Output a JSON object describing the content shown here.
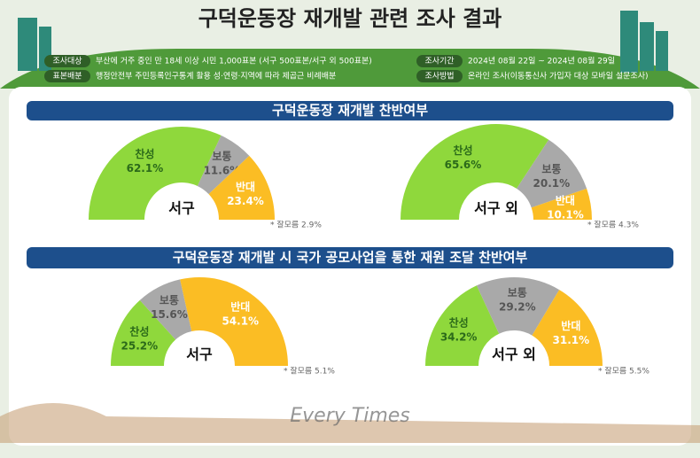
{
  "header": {
    "title": "구덕운동장 재개발 관련 조사 결과",
    "info": [
      {
        "label": "조사대상",
        "text": "부산에 거주 중인 만 18세 이상 시민 1,000표본 (서구 500표본/서구 외 500표본)"
      },
      {
        "label": "조사기간",
        "text": "2024년 08월 22일 ~ 2024년 08월 29일"
      },
      {
        "label": "표본배분",
        "text": "행정안전부 주민등록인구통계 활용 성·연령·지역에 따라 제곱근 비례배분"
      },
      {
        "label": "조사방법",
        "text": "온라인 조사(이동통신사 가입자 대상 모바일 설문조사)"
      }
    ]
  },
  "sections": [
    {
      "title": "구덕운동장 재개발 찬반여부"
    },
    {
      "title": "구덕운동장 재개발 시 국가 공모사업을 통한 재원 조달 찬반여부"
    }
  ],
  "watermark": "Every Times",
  "chart_data": [
    {
      "type": "pie",
      "title": "서구",
      "note": "* 잘모름 2.9%",
      "categories": [
        "찬성",
        "보통",
        "반대"
      ],
      "values": [
        62.1,
        11.6,
        23.4
      ],
      "value_labels": [
        "62.1%",
        "11.6%",
        "23.4%"
      ],
      "colors": [
        "#8fd83c",
        "#a9a9a9",
        "#fbbd24"
      ]
    },
    {
      "type": "pie",
      "title": "서구 외",
      "note": "* 잘모름 4.3%",
      "categories": [
        "찬성",
        "보통",
        "반대"
      ],
      "values": [
        65.6,
        20.1,
        10.1
      ],
      "value_labels": [
        "65.6%",
        "20.1%",
        "10.1%"
      ],
      "colors": [
        "#8fd83c",
        "#a9a9a9",
        "#fbbd24"
      ]
    },
    {
      "type": "pie",
      "title": "서구",
      "note": "* 잘모름 5.1%",
      "categories": [
        "찬성",
        "보통",
        "반대"
      ],
      "values": [
        25.2,
        15.6,
        54.1
      ],
      "value_labels": [
        "25.2%",
        "15.6%",
        "54.1%"
      ],
      "colors": [
        "#8fd83c",
        "#a9a9a9",
        "#fbbd24"
      ]
    },
    {
      "type": "pie",
      "title": "서구 외",
      "note": "* 잘모름 5.5%",
      "categories": [
        "찬성",
        "보통",
        "반대"
      ],
      "values": [
        34.2,
        29.2,
        31.1
      ],
      "value_labels": [
        "34.2%",
        "29.2%",
        "31.1%"
      ],
      "colors": [
        "#8fd83c",
        "#a9a9a9",
        "#fbbd24"
      ]
    }
  ]
}
